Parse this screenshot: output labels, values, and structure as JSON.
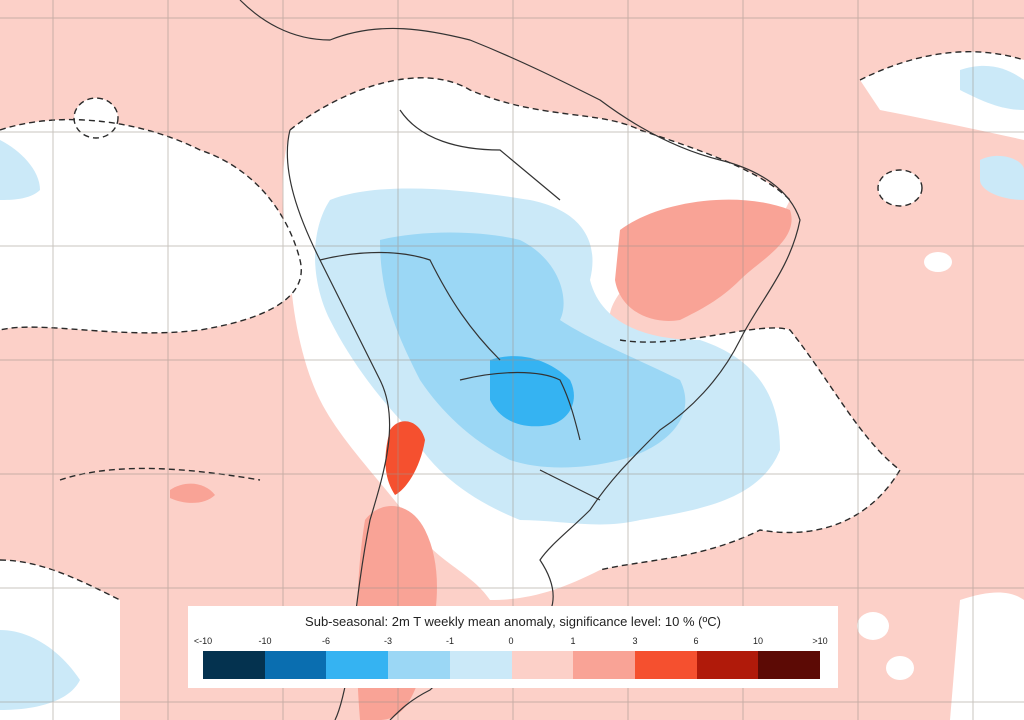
{
  "legend": {
    "title": "Sub-seasonal: 2m T weekly mean anomaly, significance level: 10 % (ºC)",
    "tick_labels": [
      "<-10",
      "-10",
      "-6",
      "-3",
      "-1",
      "0",
      "1",
      "3",
      "6",
      "10",
      ">10"
    ],
    "colors": [
      "#04324f",
      "#0a6eb0",
      "#35b3f2",
      "#9bd7f5",
      "#cbe9f8",
      "#fcd0c8",
      "#f9a396",
      "#f5502f",
      "#b01a0a",
      "#5c0a05"
    ]
  },
  "map": {
    "region": "South America",
    "background_positive_color": "#fcd0c8",
    "background_neutral_color": "#ffffff",
    "significance_contour": "dashed black line"
  }
}
